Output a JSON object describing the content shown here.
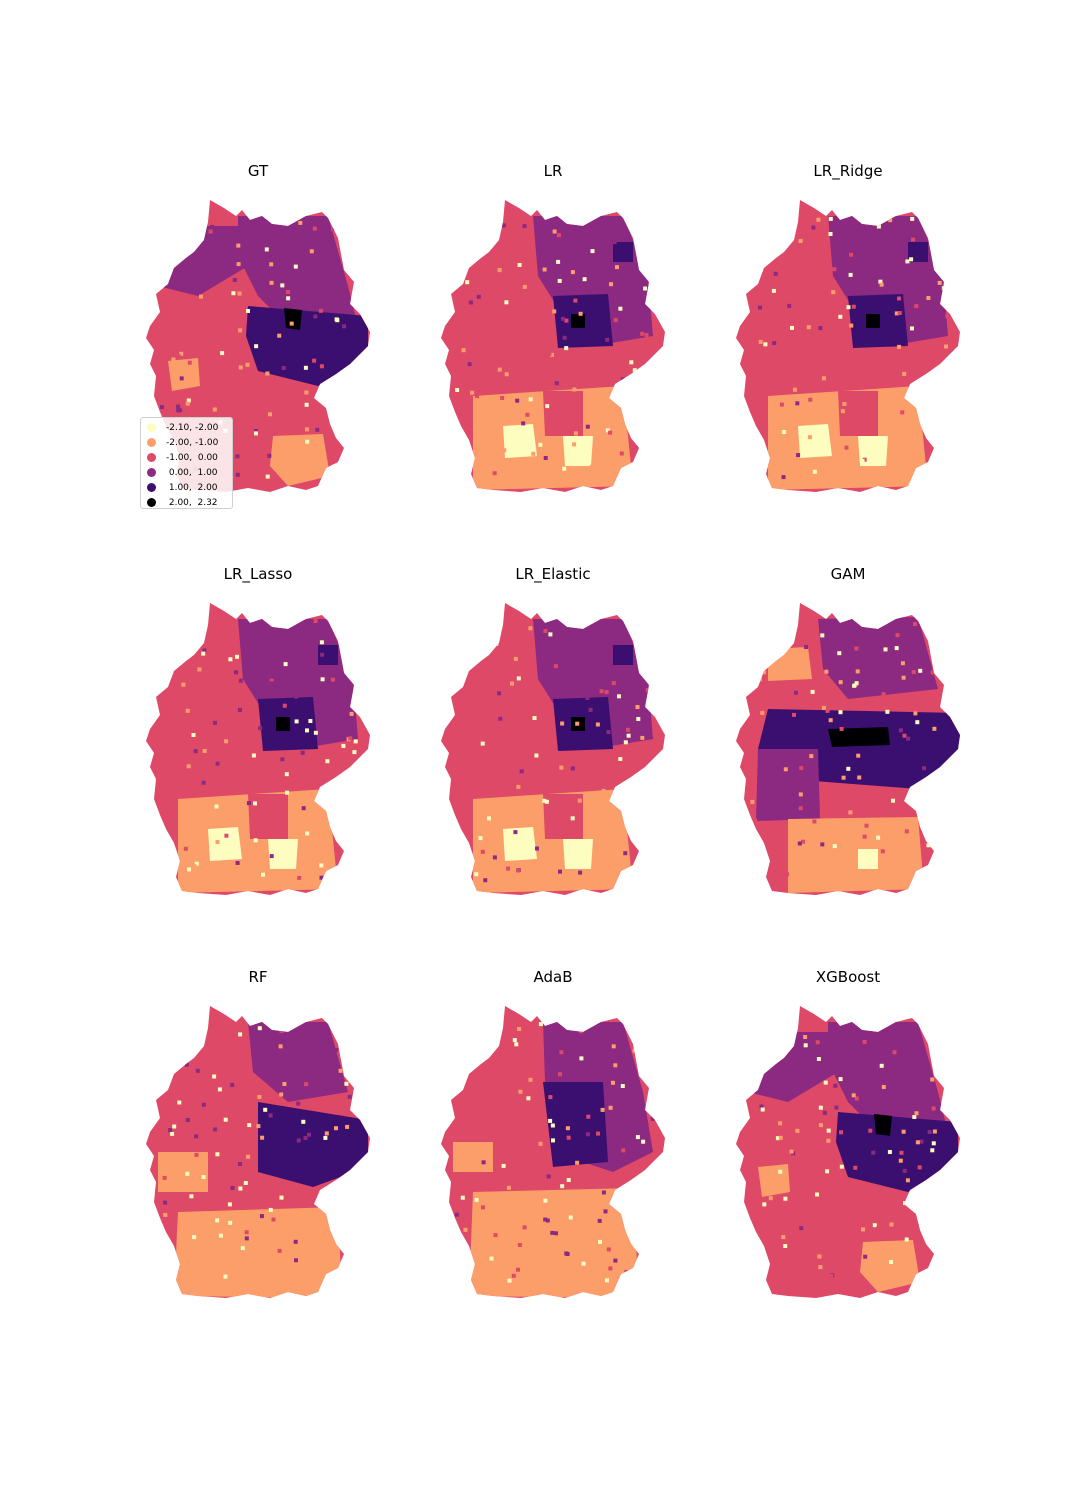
{
  "colors": {
    "c1": "#fcfdbf",
    "c2": "#fc9e6a",
    "c3": "#de4968",
    "c4": "#8c2981",
    "c5": "#3b0f70",
    "c6": "#000004"
  },
  "panels": [
    {
      "title": "GT",
      "map_style": "gt"
    },
    {
      "title": "LR",
      "map_style": "lr"
    },
    {
      "title": "LR_Ridge",
      "map_style": "lr"
    },
    {
      "title": "LR_Lasso",
      "map_style": "lr"
    },
    {
      "title": "LR_Elastic",
      "map_style": "lr"
    },
    {
      "title": "GAM",
      "map_style": "gam"
    },
    {
      "title": "RF",
      "map_style": "rf"
    },
    {
      "title": "AdaB",
      "map_style": "ada"
    },
    {
      "title": "XGBoost",
      "map_style": "gt"
    }
  ],
  "legend": {
    "items": [
      {
        "label": "-2.10, -2.00",
        "color": "#fcfdbf"
      },
      {
        "label": "-2.00, -1.00",
        "color": "#fc9e6a"
      },
      {
        "label": "-1.00,  0.00",
        "color": "#de4968"
      },
      {
        "label": " 0.00,  1.00",
        "color": "#8c2981"
      },
      {
        "label": " 1.00,  2.00",
        "color": "#3b0f70"
      },
      {
        "label": " 2.00,  2.32",
        "color": "#000004"
      }
    ]
  }
}
